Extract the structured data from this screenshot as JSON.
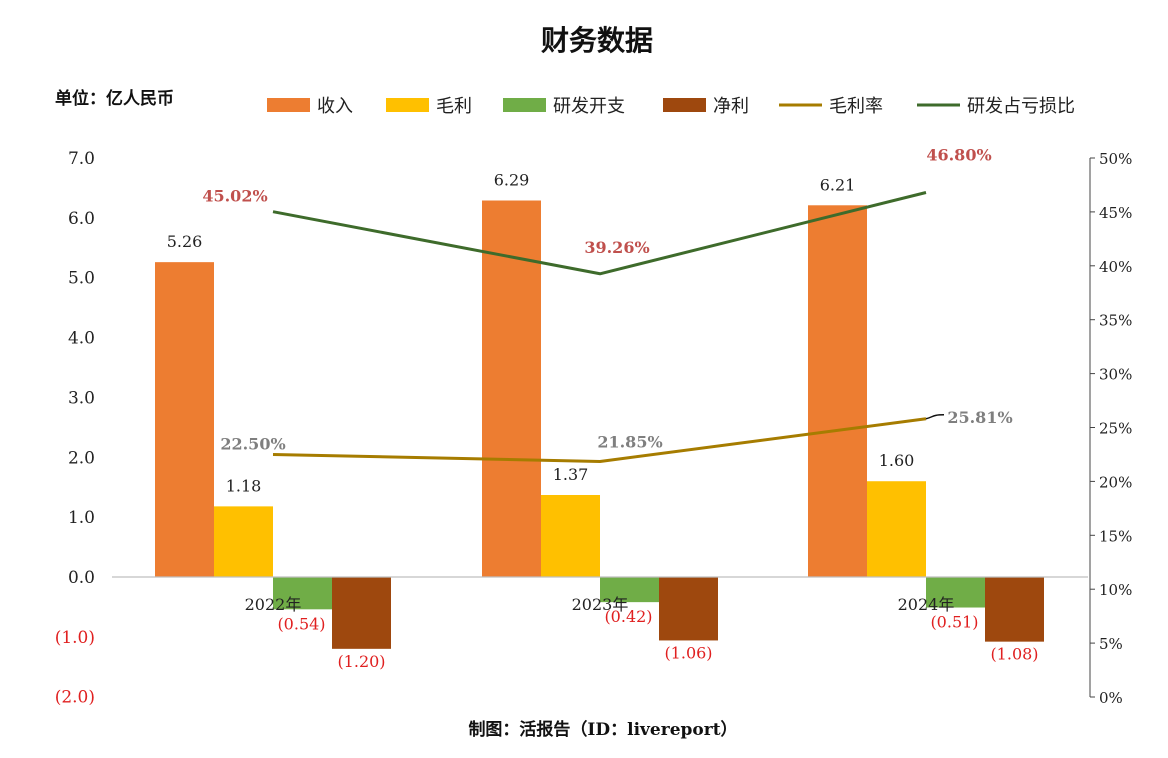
{
  "title": "财务数据",
  "unit_label": "单位：亿人民币",
  "footer": "制图：活报告（ID：livereport）",
  "chart_data": {
    "type": "bar",
    "categories": [
      "2022年",
      "2023年",
      "2024年"
    ],
    "series": [
      {
        "name": "收入",
        "kind": "bar",
        "axis": "left",
        "color": "#ed7d31",
        "values": [
          5.26,
          6.29,
          6.21
        ],
        "labels": [
          "5.26",
          "6.29",
          "6.21"
        ]
      },
      {
        "name": "毛利",
        "kind": "bar",
        "axis": "left",
        "color": "#ffc000",
        "values": [
          1.18,
          1.37,
          1.6
        ],
        "labels": [
          "1.18",
          "1.37",
          "1.60"
        ]
      },
      {
        "name": "研发开支",
        "kind": "bar",
        "axis": "left",
        "color": "#70ad47",
        "values": [
          -0.54,
          -0.42,
          -0.51
        ],
        "labels": [
          "(0.54)",
          "(0.42)",
          "(0.51)"
        ]
      },
      {
        "name": "净利",
        "kind": "bar",
        "axis": "left",
        "color": "#9e480e",
        "values": [
          -1.2,
          -1.06,
          -1.08
        ],
        "labels": [
          "(1.20)",
          "(1.06)",
          "(1.08)"
        ]
      },
      {
        "name": "毛利率",
        "kind": "line",
        "axis": "right",
        "color": "#a67c00",
        "values": [
          22.5,
          21.85,
          25.81
        ],
        "labels": [
          "22.50%",
          "21.85%",
          "25.81%"
        ]
      },
      {
        "name": "研发占亏损比",
        "kind": "line",
        "axis": "right",
        "color": "#3e6b2b",
        "values": [
          45.02,
          39.26,
          46.8
        ],
        "labels": [
          "45.02%",
          "39.26%",
          "46.80%"
        ]
      }
    ],
    "y_left": {
      "range": [
        -2.0,
        7.0
      ],
      "ticks": [
        "7.0",
        "6.0",
        "5.0",
        "4.0",
        "3.0",
        "2.0",
        "1.0",
        "0.0",
        "(1.0)",
        "(2.0)"
      ]
    },
    "y_right": {
      "range": [
        0,
        50
      ],
      "ticks": [
        "50%",
        "45%",
        "40%",
        "35%",
        "30%",
        "25%",
        "20%",
        "15%",
        "10%",
        "5%",
        "0%"
      ]
    },
    "legend_position": "top",
    "grid": false
  }
}
